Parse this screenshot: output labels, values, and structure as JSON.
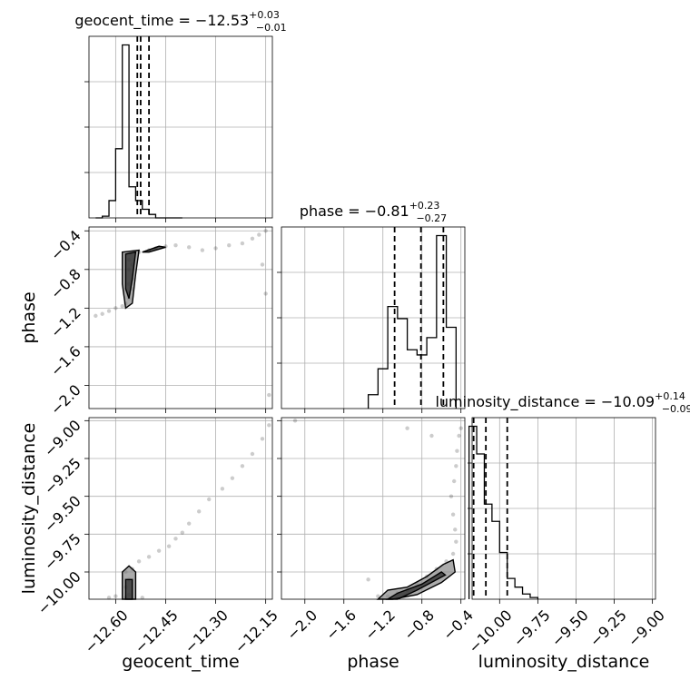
{
  "chart_data": {
    "type": "corner",
    "parameters": [
      {
        "key": "geocent_time",
        "label": "geocent_time",
        "median": "−12.53",
        "plus": "+0.03",
        "minus": "−0.01",
        "range": [
          -12.68,
          -12.13
        ],
        "ticks": [
          -12.6,
          -12.45,
          -12.3,
          -12.15
        ],
        "tick_labels": [
          "−12.60",
          "−12.45",
          "−12.30",
          "−12.15"
        ],
        "quantiles": [
          -12.535,
          -12.525,
          -12.5
        ]
      },
      {
        "key": "phase",
        "label": "phase",
        "median": "−0.81",
        "plus": "+0.23",
        "minus": "−0.27",
        "range": [
          -2.24,
          -0.36
        ],
        "ticks": [
          -2.0,
          -1.6,
          -1.2,
          -0.8,
          -0.4
        ],
        "tick_labels": [
          "−2.0",
          "−1.6",
          "−1.2",
          "−0.8",
          "−0.4"
        ],
        "quantiles": [
          -1.08,
          -0.81,
          -0.58
        ]
      },
      {
        "key": "luminosity_distance",
        "label": "luminosity_distance",
        "median": "−10.09",
        "plus": "+0.14",
        "minus": "−0.09",
        "range": [
          -10.18,
          -8.98
        ],
        "ticks": [
          -10.0,
          -9.75,
          -9.5,
          -9.25,
          -9.0
        ],
        "tick_labels": [
          "−10.00",
          "−9.75",
          "−9.50",
          "−9.25",
          "−9.00"
        ],
        "quantiles": [
          -10.17,
          -10.09,
          -9.95
        ]
      }
    ],
    "histograms": [
      {
        "param": "geocent_time",
        "bins": [
          -12.66,
          -12.64,
          -12.62,
          -12.6,
          -12.58,
          -12.56,
          -12.54,
          -12.52,
          -12.5,
          -12.48,
          -12.46,
          -12.44,
          -12.42,
          -12.4
        ],
        "counts": [
          0.0,
          0.01,
          0.1,
          0.4,
          1.0,
          0.18,
          0.1,
          0.05,
          0.02,
          0.0,
          0.0,
          0.0,
          0.0
        ],
        "ylim": [
          0,
          1.05
        ]
      },
      {
        "param": "phase",
        "bins": [
          -1.35,
          -1.25,
          -1.15,
          -1.05,
          -0.95,
          -0.85,
          -0.75,
          -0.65,
          -0.55,
          -0.45
        ],
        "counts": [
          0.08,
          0.23,
          0.59,
          0.52,
          0.34,
          0.31,
          0.41,
          1.0,
          0.47
        ],
        "ylim": [
          0,
          1.05
        ]
      },
      {
        "param": "luminosity_distance",
        "bins": [
          -10.2,
          -10.15,
          -10.1,
          -10.05,
          -10.0,
          -9.95,
          -9.9,
          -9.85,
          -9.8,
          -9.75
        ],
        "counts": [
          1.0,
          0.84,
          0.55,
          0.45,
          0.27,
          0.12,
          0.07,
          0.03,
          0.01
        ],
        "ylim": [
          0,
          1.05
        ]
      }
    ],
    "scatter_panels": [
      {
        "x": "geocent_time",
        "y": "phase",
        "samples": [
          [
            -12.56,
            -0.7
          ],
          [
            -12.55,
            -0.75
          ],
          [
            -12.56,
            -0.8
          ],
          [
            -12.55,
            -0.9
          ],
          [
            -12.56,
            -0.95
          ],
          [
            -12.55,
            -1.0
          ],
          [
            -12.56,
            -1.05
          ],
          [
            -12.56,
            -1.1
          ],
          [
            -12.57,
            -1.15
          ],
          [
            -12.58,
            -1.18
          ],
          [
            -12.6,
            -1.2
          ],
          [
            -12.62,
            -1.23
          ],
          [
            -12.64,
            -1.26
          ],
          [
            -12.66,
            -1.28
          ],
          [
            -12.53,
            -0.62
          ],
          [
            -12.5,
            -0.6
          ],
          [
            -12.48,
            -0.58
          ],
          [
            -12.45,
            -0.56
          ],
          [
            -12.42,
            -0.55
          ],
          [
            -12.38,
            -0.57
          ],
          [
            -12.34,
            -0.6
          ],
          [
            -12.3,
            -0.58
          ],
          [
            -12.26,
            -0.55
          ],
          [
            -12.22,
            -0.53
          ],
          [
            -12.19,
            -0.48
          ],
          [
            -12.17,
            -0.44
          ],
          [
            -12.15,
            -0.4
          ],
          [
            -12.16,
            -0.75
          ],
          [
            -12.15,
            -1.05
          ],
          [
            -12.14,
            -2.1
          ]
        ],
        "contours": [
          [
            [
              -12.58,
              -0.62
            ],
            [
              -12.53,
              -0.6
            ],
            [
              -12.54,
              -0.85
            ],
            [
              -12.55,
              -1.15
            ],
            [
              -12.57,
              -1.2
            ],
            [
              -12.58,
              -0.95
            ]
          ],
          [
            [
              -12.57,
              -0.64
            ],
            [
              -12.54,
              -0.62
            ],
            [
              -12.55,
              -0.9
            ],
            [
              -12.56,
              -1.1
            ],
            [
              -12.57,
              -1.0
            ]
          ],
          [
            [
              -12.52,
              -0.62
            ],
            [
              -12.47,
              -0.56
            ],
            [
              -12.45,
              -0.57
            ],
            [
              -12.5,
              -0.62
            ]
          ]
        ]
      },
      {
        "x": "geocent_time",
        "y": "luminosity_distance",
        "samples": [
          [
            -12.57,
            -10.17
          ],
          [
            -12.56,
            -10.15
          ],
          [
            -12.57,
            -10.1
          ],
          [
            -12.56,
            -10.05
          ],
          [
            -12.57,
            -10.0
          ],
          [
            -12.55,
            -9.98
          ],
          [
            -12.53,
            -9.93
          ],
          [
            -12.5,
            -9.9
          ],
          [
            -12.47,
            -9.86
          ],
          [
            -12.44,
            -9.83
          ],
          [
            -12.42,
            -9.78
          ],
          [
            -12.4,
            -9.74
          ],
          [
            -12.38,
            -9.68
          ],
          [
            -12.35,
            -9.6
          ],
          [
            -12.32,
            -9.52
          ],
          [
            -12.28,
            -9.45
          ],
          [
            -12.25,
            -9.38
          ],
          [
            -12.22,
            -9.3
          ],
          [
            -12.19,
            -9.22
          ],
          [
            -12.16,
            -9.12
          ],
          [
            -12.14,
            -9.03
          ],
          [
            -12.62,
            -10.17
          ],
          [
            -12.6,
            -10.16
          ],
          [
            -12.52,
            -10.17
          ]
        ],
        "contours": [
          [
            [
              -12.58,
              -10.18
            ],
            [
              -12.58,
              -10.0
            ],
            [
              -12.56,
              -9.96
            ],
            [
              -12.54,
              -10.0
            ],
            [
              -12.54,
              -10.18
            ]
          ],
          [
            [
              -12.57,
              -10.18
            ],
            [
              -12.57,
              -10.05
            ],
            [
              -12.55,
              -10.05
            ],
            [
              -12.55,
              -10.18
            ]
          ]
        ]
      },
      {
        "x": "phase",
        "y": "luminosity_distance",
        "samples": [
          [
            -1.25,
            -10.16
          ],
          [
            -1.15,
            -10.16
          ],
          [
            -1.05,
            -10.14
          ],
          [
            -0.95,
            -10.12
          ],
          [
            -0.85,
            -10.08
          ],
          [
            -0.75,
            -10.03
          ],
          [
            -0.65,
            -9.98
          ],
          [
            -0.55,
            -9.93
          ],
          [
            -0.48,
            -9.88
          ],
          [
            -0.45,
            -9.8
          ],
          [
            -0.46,
            -9.72
          ],
          [
            -0.48,
            -9.62
          ],
          [
            -0.5,
            -9.5
          ],
          [
            -0.47,
            -9.4
          ],
          [
            -0.45,
            -9.3
          ],
          [
            -0.44,
            -9.2
          ],
          [
            -0.42,
            -9.1
          ],
          [
            -0.4,
            -9.05
          ],
          [
            -0.7,
            -9.1
          ],
          [
            -0.95,
            -9.05
          ],
          [
            -1.35,
            -10.05
          ],
          [
            -2.1,
            -9.0
          ]
        ],
        "contours": [
          [
            [
              -1.25,
              -10.18
            ],
            [
              -1.15,
              -10.12
            ],
            [
              -0.95,
              -10.1
            ],
            [
              -0.75,
              -10.03
            ],
            [
              -0.58,
              -9.95
            ],
            [
              -0.48,
              -9.92
            ],
            [
              -0.46,
              -10.0
            ],
            [
              -0.6,
              -10.07
            ],
            [
              -0.85,
              -10.15
            ],
            [
              -1.1,
              -10.18
            ]
          ],
          [
            [
              -1.15,
              -10.18
            ],
            [
              -1.05,
              -10.14
            ],
            [
              -0.8,
              -10.08
            ],
            [
              -0.6,
              -10.0
            ],
            [
              -0.56,
              -10.02
            ],
            [
              -0.85,
              -10.12
            ],
            [
              -1.05,
              -10.18
            ]
          ]
        ]
      }
    ]
  }
}
